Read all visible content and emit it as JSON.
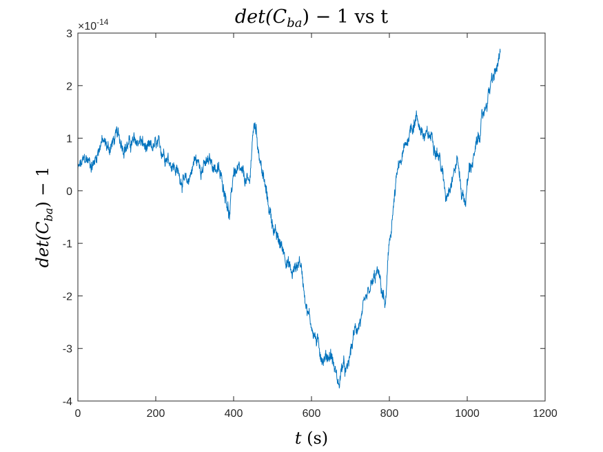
{
  "chart_data": {
    "type": "line",
    "title_parts": {
      "lead": "det(C",
      "sub": "ba",
      "tail": ") − 1 vs t"
    },
    "xlabel_parts": {
      "var": "t",
      "unit": "(s)"
    },
    "ylabel_parts": {
      "lead": "det(C",
      "sub": "ba",
      "tail": ") − 1"
    },
    "y_exponent": {
      "base": "×10",
      "power": "-14"
    },
    "xlim": [
      0,
      1200
    ],
    "ylim": [
      -4,
      3
    ],
    "xticks": [
      0,
      200,
      400,
      600,
      800,
      1000,
      1200
    ],
    "yticks": [
      -4,
      -3,
      -2,
      -1,
      0,
      1,
      2,
      3
    ],
    "xtick_labels": [
      "0",
      "200",
      "400",
      "600",
      "800",
      "1000",
      "1200"
    ],
    "ytick_labels": [
      "-4",
      "-3",
      "-2",
      "-1",
      "0",
      "1",
      "2",
      "3"
    ],
    "grid": false,
    "line_color": "#0072BD",
    "series": [
      {
        "x": [
          0,
          20,
          40,
          60,
          80,
          100,
          120,
          140,
          160,
          180,
          200,
          220,
          240,
          260,
          280,
          300,
          320,
          340,
          360,
          380,
          390,
          400,
          420,
          440,
          450,
          455,
          470,
          490,
          510,
          530,
          550,
          570,
          590,
          610,
          630,
          650,
          670,
          680,
          690,
          710,
          730,
          750,
          770,
          790,
          800,
          820,
          840,
          855,
          870,
          890,
          910,
          930,
          945,
          955,
          965,
          975,
          985,
          995,
          1005,
          1020,
          1040,
          1060,
          1075,
          1085
        ],
        "y": [
          0.4,
          0.6,
          0.5,
          0.95,
          0.8,
          1.05,
          0.85,
          0.9,
          0.95,
          0.75,
          0.85,
          0.75,
          0.55,
          0.3,
          0.1,
          0.6,
          0.45,
          0.55,
          0.4,
          -0.05,
          -0.5,
          0.4,
          0.3,
          0.1,
          1.1,
          1.3,
          0.5,
          -0.3,
          -0.9,
          -1.15,
          -1.6,
          -1.3,
          -2.3,
          -2.8,
          -3.2,
          -3.1,
          -3.7,
          -3.3,
          -3.5,
          -2.7,
          -2.4,
          -1.9,
          -1.55,
          -2.2,
          -1.0,
          0.3,
          0.8,
          1.2,
          1.4,
          1.0,
          1.05,
          0.6,
          -0.1,
          0.15,
          0.35,
          0.6,
          0.0,
          -0.2,
          0.4,
          0.7,
          1.4,
          2.0,
          2.3,
          2.55
        ],
        "noise_amplitude": 0.12
      }
    ]
  }
}
